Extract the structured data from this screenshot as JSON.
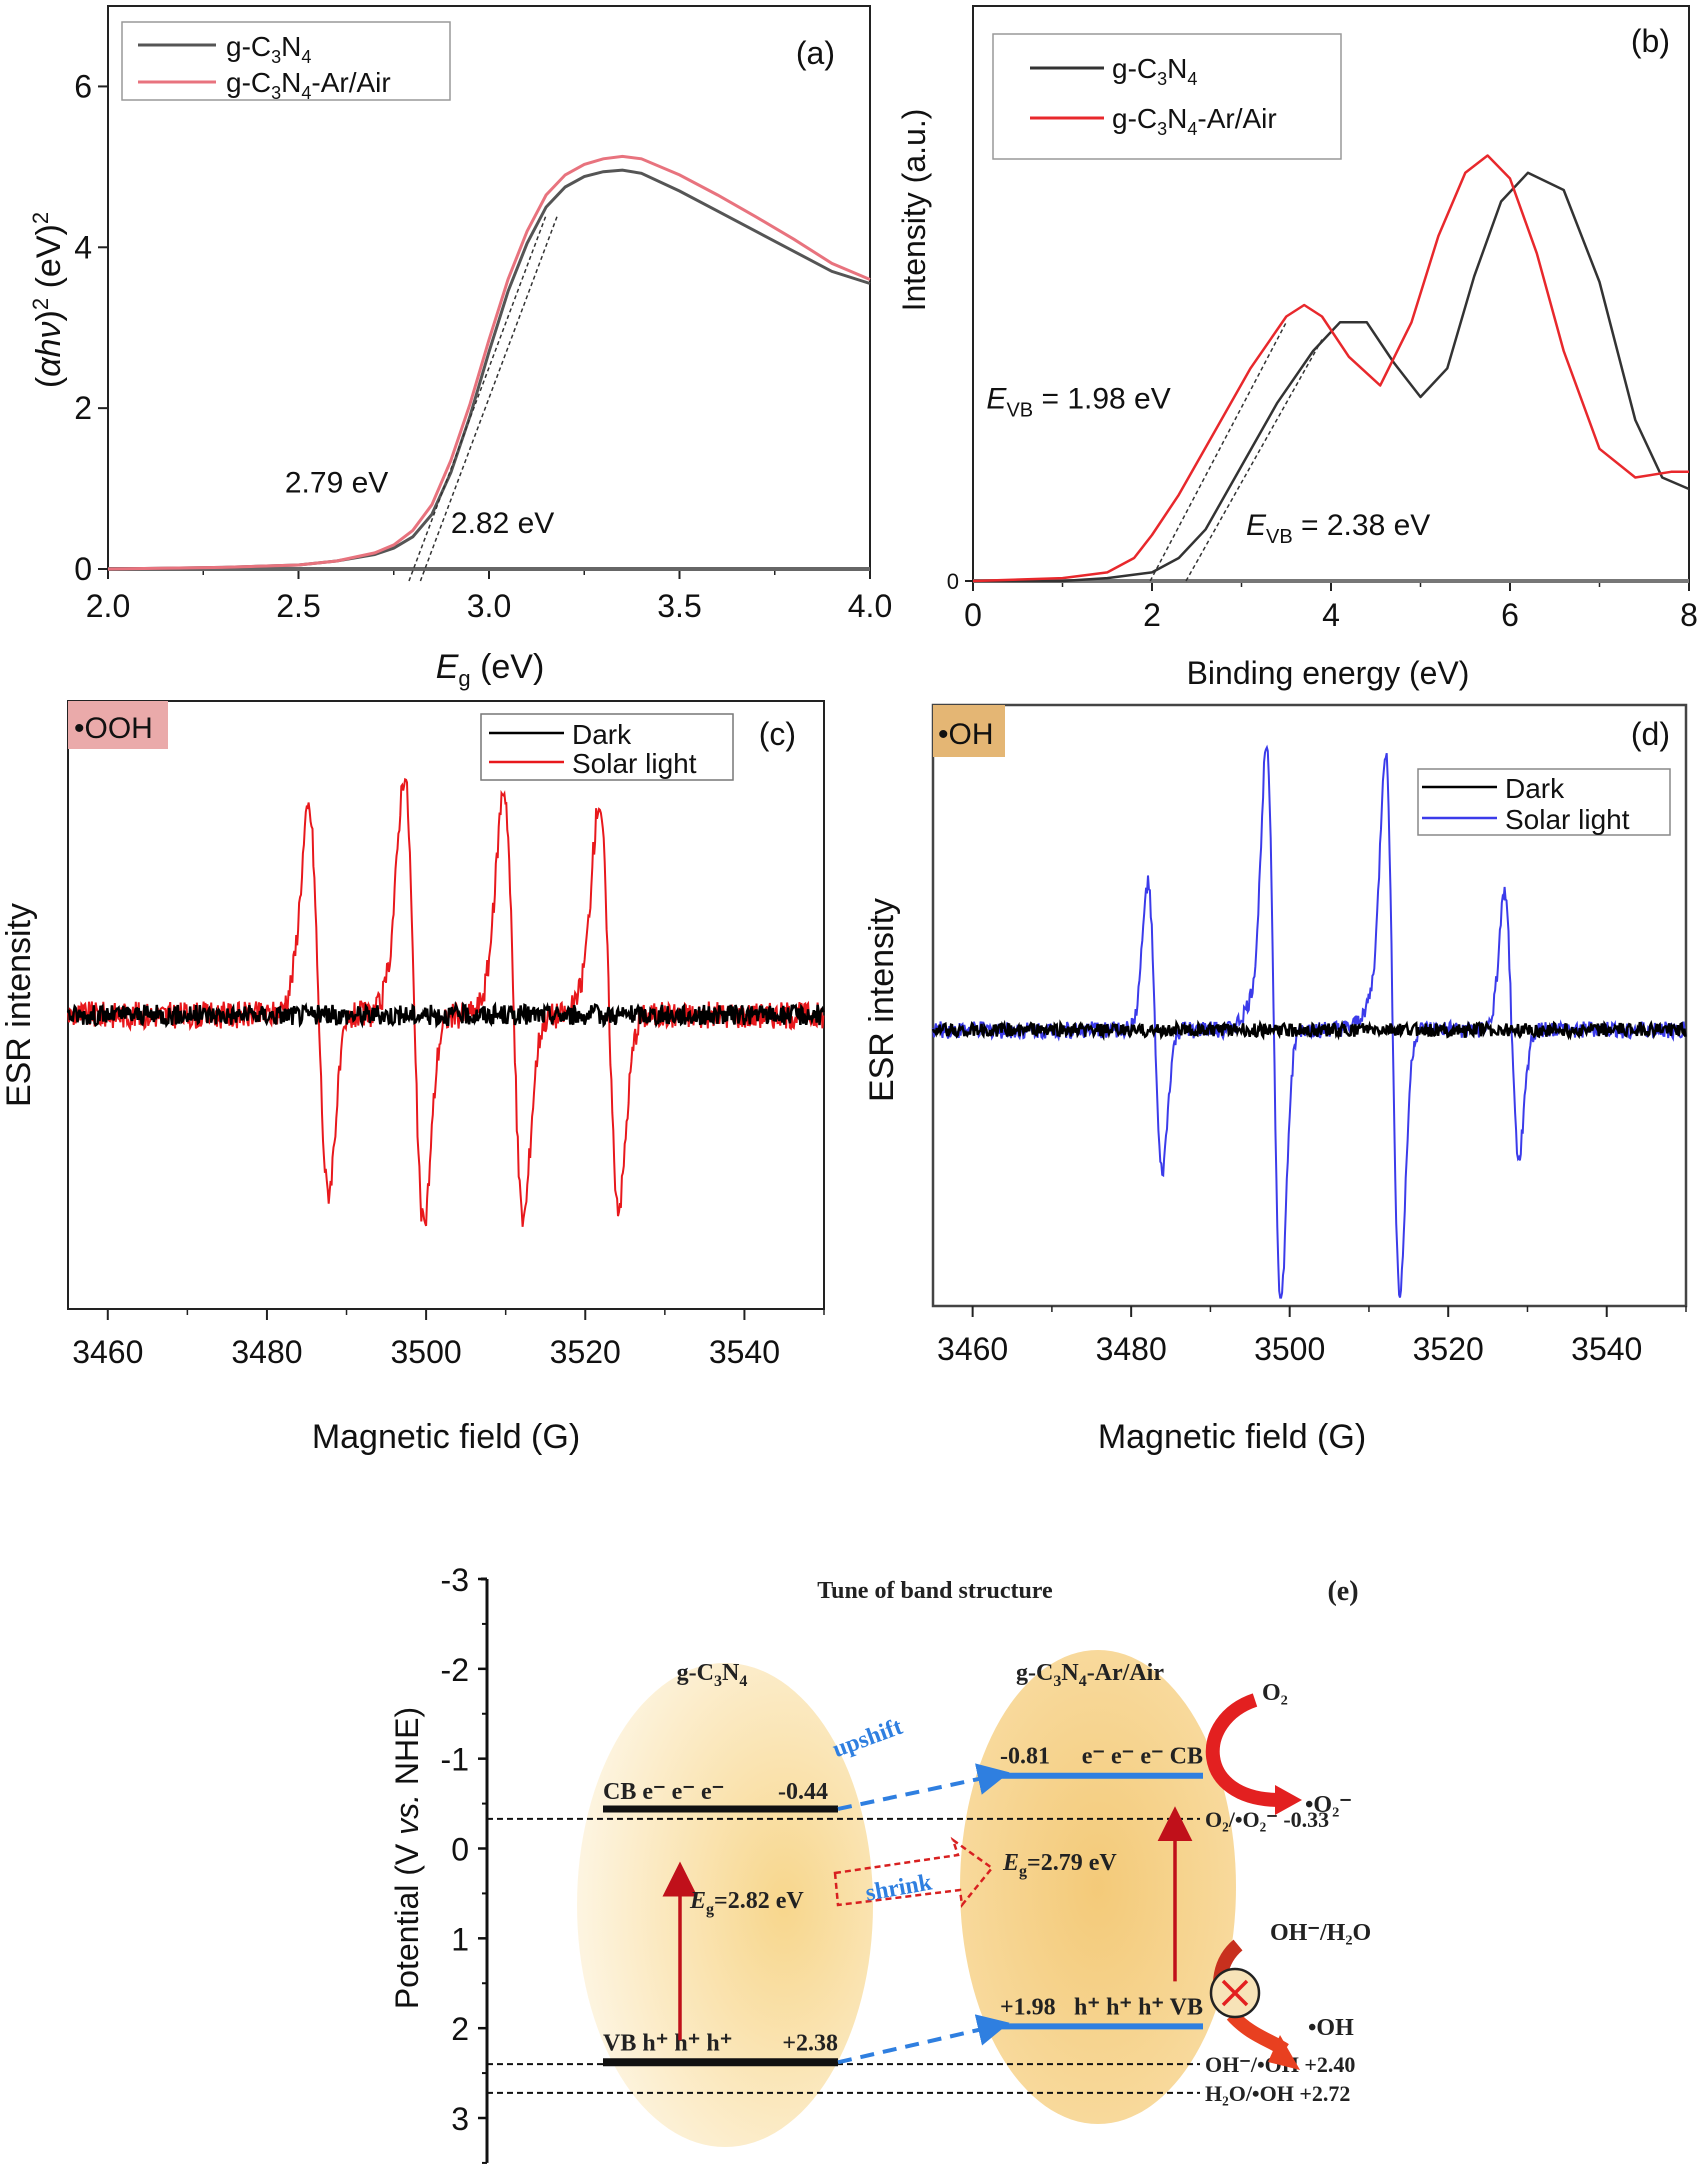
{
  "chart_data": [
    {
      "id": "a",
      "type": "line",
      "panel_label": "(a)",
      "xlabel": "E_g (eV)",
      "xlabel_main": "E",
      "xlabel_sub": "g",
      "xlabel_rest": " (eV)",
      "ylabel": "(αhν)^2 (eV)^2",
      "xlim": [
        2.0,
        4.0
      ],
      "ylim": [
        0,
        7
      ],
      "xticks": [
        "2.0",
        "2.5",
        "3.0",
        "3.5",
        "4.0"
      ],
      "xtick_values": [
        2.0,
        2.5,
        3.0,
        3.5,
        4.0
      ],
      "yticks": [
        "0",
        "2",
        "4",
        "6"
      ],
      "ytick_values": [
        0,
        2,
        4,
        6
      ],
      "legend_position": "top-left",
      "series": [
        {
          "name": "g-C3N4",
          "color": "#555555",
          "x": [
            2.0,
            2.3,
            2.5,
            2.6,
            2.7,
            2.75,
            2.8,
            2.85,
            2.9,
            2.95,
            3.0,
            3.05,
            3.1,
            3.15,
            3.2,
            3.25,
            3.3,
            3.35,
            3.4,
            3.5,
            3.6,
            3.7,
            3.8,
            3.9,
            4.0
          ],
          "y": [
            0.0,
            0.02,
            0.05,
            0.1,
            0.18,
            0.26,
            0.4,
            0.68,
            1.2,
            1.9,
            2.7,
            3.45,
            4.05,
            4.5,
            4.75,
            4.88,
            4.94,
            4.96,
            4.92,
            4.7,
            4.45,
            4.2,
            3.95,
            3.7,
            3.55
          ]
        },
        {
          "name": "g-C3N4-Ar/Air",
          "color": "#e8737e",
          "x": [
            2.0,
            2.3,
            2.5,
            2.6,
            2.7,
            2.75,
            2.8,
            2.85,
            2.9,
            2.95,
            3.0,
            3.05,
            3.1,
            3.15,
            3.2,
            3.25,
            3.3,
            3.35,
            3.4,
            3.5,
            3.6,
            3.7,
            3.8,
            3.9,
            4.0
          ],
          "y": [
            0.0,
            0.02,
            0.05,
            0.1,
            0.2,
            0.3,
            0.48,
            0.8,
            1.35,
            2.05,
            2.85,
            3.6,
            4.2,
            4.65,
            4.9,
            5.03,
            5.1,
            5.13,
            5.1,
            4.9,
            4.65,
            4.38,
            4.1,
            3.8,
            3.6
          ]
        }
      ],
      "tangents": [
        {
          "x": [
            2.79,
            3.15
          ],
          "y": [
            0,
            4.4
          ]
        },
        {
          "x": [
            2.82,
            3.18
          ],
          "y": [
            0,
            4.4
          ]
        }
      ],
      "annotations": [
        {
          "text": "2.79 eV",
          "x": 2.6,
          "y": 0.95
        },
        {
          "text": "2.82 eV",
          "x": 2.9,
          "y": 0.45
        }
      ]
    },
    {
      "id": "b",
      "type": "line",
      "panel_label": "(b)",
      "xlabel": "Binding energy (eV)",
      "ylabel": "Intensity (a.u.)",
      "xlim": [
        0,
        8
      ],
      "ylim": [
        0,
        1.0
      ],
      "xticks": [
        "0",
        "2",
        "4",
        "6",
        "8"
      ],
      "xtick_values": [
        0,
        2,
        4,
        6,
        8
      ],
      "yticks": [
        "0"
      ],
      "ytick_values": [
        0
      ],
      "legend_position": "top-left",
      "series": [
        {
          "name": "g-C3N4",
          "color": "#333333",
          "x": [
            0,
            1,
            1.5,
            2.0,
            2.3,
            2.6,
            3.0,
            3.4,
            3.8,
            4.1,
            4.4,
            4.7,
            5.0,
            5.3,
            5.6,
            5.9,
            6.2,
            6.6,
            7.0,
            7.4,
            7.7,
            8.0
          ],
          "y": [
            0.0,
            0.0,
            0.005,
            0.015,
            0.04,
            0.09,
            0.2,
            0.31,
            0.4,
            0.45,
            0.45,
            0.38,
            0.32,
            0.37,
            0.53,
            0.66,
            0.71,
            0.68,
            0.52,
            0.28,
            0.18,
            0.16
          ]
        },
        {
          "name": "g-C3N4-Ar/Air",
          "color": "#e8282c",
          "x": [
            0,
            1,
            1.5,
            1.8,
            2.0,
            2.3,
            2.7,
            3.1,
            3.5,
            3.7,
            3.9,
            4.2,
            4.55,
            4.9,
            5.2,
            5.5,
            5.75,
            6.0,
            6.3,
            6.6,
            7.0,
            7.4,
            7.8,
            8.0
          ],
          "y": [
            0.0,
            0.005,
            0.015,
            0.04,
            0.08,
            0.15,
            0.26,
            0.37,
            0.46,
            0.48,
            0.46,
            0.39,
            0.34,
            0.45,
            0.6,
            0.71,
            0.74,
            0.7,
            0.57,
            0.4,
            0.23,
            0.18,
            0.19,
            0.19
          ]
        }
      ],
      "tangents": [
        {
          "x": [
            1.98,
            3.5
          ],
          "y": [
            0,
            0.45
          ]
        },
        {
          "x": [
            2.38,
            3.9
          ],
          "y": [
            0,
            0.42
          ]
        }
      ],
      "annotations": [
        {
          "main": "E",
          "sub": "VB",
          "rest": " = 1.98 eV",
          "x": 0.15,
          "y": 0.3
        },
        {
          "main": "E",
          "sub": "VB",
          "rest": " = 2.38 eV",
          "x": 3.05,
          "y": 0.08
        }
      ]
    },
    {
      "id": "c",
      "type": "line",
      "panel_label": "(c)",
      "tag": "•OOH",
      "tag_color": "#eaaaaa",
      "xlabel": "Magnetic field (G)",
      "ylabel": "ESR intensity",
      "xlim": [
        3455,
        3550
      ],
      "ylim": [
        -1.0,
        1.0
      ],
      "xticks": [
        "3460",
        "3480",
        "3500",
        "3520",
        "3540"
      ],
      "xtick_values": [
        3460,
        3480,
        3500,
        3520,
        3540
      ],
      "legend_position": "top-right",
      "series": [
        {
          "name": "Dark",
          "color": "#000000",
          "noise": 0.03,
          "peaks": []
        },
        {
          "name": "Solar light",
          "color": "#e8181c",
          "noise": 0.04,
          "peaks": [
            {
              "center": 3486.5,
              "up": 0.56,
              "down": 0.52,
              "width": 1.2
            },
            {
              "center": 3498.5,
              "up": 0.66,
              "down": 0.62,
              "width": 1.2
            },
            {
              "center": 3511.0,
              "up": 0.62,
              "down": 0.6,
              "width": 1.2
            },
            {
              "center": 3523.0,
              "up": 0.58,
              "down": 0.56,
              "width": 1.2
            }
          ]
        }
      ]
    },
    {
      "id": "d",
      "type": "line",
      "panel_label": "(d)",
      "tag": "•OH",
      "tag_color": "#e4b674",
      "xlabel": "Magnetic field (G)",
      "ylabel": "ESR intensity",
      "xlim": [
        3455,
        3550
      ],
      "ylim": [
        -1.0,
        1.0
      ],
      "xticks": [
        "3460",
        "3480",
        "3500",
        "3520",
        "3540"
      ],
      "xtick_values": [
        3460,
        3480,
        3500,
        3520,
        3540
      ],
      "legend_position": "top-right",
      "series": [
        {
          "name": "Dark",
          "color": "#000000",
          "noise": 0.02,
          "peaks": []
        },
        {
          "name": "Solar light",
          "color": "#3b3bea",
          "noise": 0.025,
          "peaks": [
            {
              "center": 3483.0,
              "up": 0.43,
              "down": 0.42,
              "width": 0.9
            },
            {
              "center": 3498.0,
              "up": 0.82,
              "down": 0.8,
              "width": 0.9
            },
            {
              "center": 3513.0,
              "up": 0.78,
              "down": 0.78,
              "width": 0.9
            },
            {
              "center": 3528.0,
              "up": 0.4,
              "down": 0.37,
              "width": 0.9
            }
          ]
        }
      ]
    },
    {
      "id": "e",
      "type": "diagram",
      "panel_label": "(e)",
      "title": "Tune of band structure",
      "ylabel": "Potential (V vs. NHE)",
      "ylim": [
        -3.0,
        3.5
      ],
      "yticks": [
        "-3",
        "-2",
        "-1",
        "0",
        "1",
        "2",
        "3"
      ],
      "ytick_values": [
        -3,
        -2,
        -1,
        0,
        1,
        2,
        3
      ],
      "materials": [
        {
          "name": "g-C3N4",
          "CB": -0.44,
          "VB": 2.38,
          "Eg_label": "=2.82 eV",
          "CB_label": "CB  e⁻ e⁻ e⁻",
          "VB_label": "VB  h⁺ h⁺ h⁺",
          "CB_value": "-0.44",
          "VB_value": "+2.38",
          "bar_color": "#111111"
        },
        {
          "name": "g-C3N4-Ar/Air",
          "CB": -0.81,
          "VB": 1.98,
          "Eg_label": "=2.79 eV",
          "CB_label": "e⁻ e⁻ e⁻ CB",
          "VB_label": "h⁺ h⁺ h⁺ VB",
          "CB_value": "-0.81",
          "VB_value": "+1.98",
          "bar_color": "#2f7fe0"
        }
      ],
      "reference_levels": [
        {
          "label": "O₂/•O₂⁻  -0.33",
          "value": -0.33
        },
        {
          "label": "OH⁻/•OH  +2.40",
          "value": 2.4
        },
        {
          "label": "H₂O/•OH  +2.72",
          "value": 2.72
        }
      ],
      "arrows": {
        "upshift": "upshift",
        "shrink": "shrink"
      },
      "reactions": {
        "o2": "O₂",
        "superoxide": "•O₂⁻",
        "oh_h2o": "OH⁻/H₂O",
        "hydroxyl": "•OH"
      },
      "colors": {
        "ellipse": "#f8d98c",
        "excitation_arrow": "#c0101a",
        "shift_arrow": "#2f7fe0",
        "shrink_box": "#d82020",
        "reaction_arrow": "#e32020"
      }
    }
  ]
}
